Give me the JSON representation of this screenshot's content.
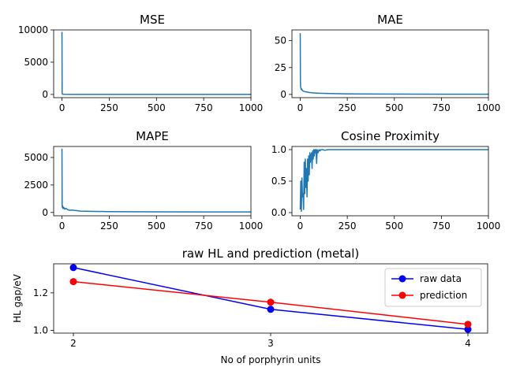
{
  "chart_data": [
    {
      "type": "line",
      "title": "MSE",
      "xlabel": "",
      "ylabel": "",
      "xlim": [
        -44,
        1000
      ],
      "ylim": [
        -500,
        10000
      ],
      "xticks": [
        0,
        250,
        500,
        750,
        1000
      ],
      "xtick_labels": [
        "0",
        "250",
        "500",
        "750",
        "1000"
      ],
      "yticks": [
        0,
        5000,
        10000
      ],
      "ytick_labels": [
        "0",
        "5000",
        "10000"
      ],
      "color": "#1f77b4",
      "series": [
        {
          "x": [
            0,
            1,
            3,
            10,
            50,
            100,
            250,
            500,
            750,
            1000
          ],
          "values": [
            9700,
            100,
            30,
            15,
            5,
            3,
            2,
            1,
            1,
            1
          ]
        }
      ]
    },
    {
      "type": "line",
      "title": "MAE",
      "xlabel": "",
      "ylabel": "",
      "xlim": [
        -44,
        1000
      ],
      "ylim": [
        -3,
        60
      ],
      "xticks": [
        0,
        250,
        500,
        750,
        1000
      ],
      "xtick_labels": [
        "0",
        "250",
        "500",
        "750",
        "1000"
      ],
      "yticks": [
        0,
        25,
        50
      ],
      "ytick_labels": [
        "0",
        "25",
        "50"
      ],
      "color": "#1f77b4",
      "series": [
        {
          "x": [
            0,
            1,
            2,
            4,
            6,
            8,
            12,
            18,
            25,
            35,
            50,
            70,
            100,
            150,
            250,
            500,
            750,
            1000
          ],
          "values": [
            57,
            12,
            7,
            5.5,
            4.5,
            5,
            3.5,
            3,
            2.6,
            2.2,
            1.8,
            1.4,
            1.1,
            0.8,
            0.5,
            0.3,
            0.2,
            0.2
          ]
        }
      ]
    },
    {
      "type": "line",
      "title": "MAPE",
      "xlabel": "",
      "ylabel": "",
      "xlim": [
        -44,
        1000
      ],
      "ylim": [
        -300,
        6000
      ],
      "xticks": [
        0,
        250,
        500,
        750,
        1000
      ],
      "xtick_labels": [
        "0",
        "250",
        "500",
        "750",
        "1000"
      ],
      "yticks": [
        0,
        2500,
        5000
      ],
      "ytick_labels": [
        "0",
        "2500",
        "5000"
      ],
      "color": "#1f77b4",
      "series": [
        {
          "x": [
            0,
            1,
            2,
            4,
            6,
            10,
            15,
            20,
            30,
            40,
            50,
            70,
            100,
            150,
            250,
            500,
            750,
            1000
          ],
          "values": [
            5800,
            700,
            450,
            600,
            350,
            450,
            300,
            380,
            250,
            200,
            220,
            180,
            120,
            100,
            80,
            60,
            50,
            50
          ]
        }
      ]
    },
    {
      "type": "line",
      "title": "Cosine Proximity",
      "xlabel": "",
      "ylabel": "",
      "xlim": [
        -44,
        1000
      ],
      "ylim": [
        -0.05,
        1.05
      ],
      "xticks": [
        0,
        250,
        500,
        750,
        1000
      ],
      "xtick_labels": [
        "0",
        "250",
        "500",
        "750",
        "1000"
      ],
      "yticks": [
        0,
        0.5,
        1
      ],
      "ytick_labels": [
        "0.0",
        "0.5",
        "1.0"
      ],
      "color": "#1f77b4",
      "series": [
        {
          "x": [
            0,
            3,
            6,
            9,
            12,
            15,
            18,
            21,
            24,
            27,
            30,
            33,
            36,
            39,
            42,
            45,
            48,
            51,
            54,
            57,
            60,
            63,
            66,
            69,
            72,
            75,
            78,
            81,
            84,
            87,
            90,
            95,
            100,
            105,
            110,
            120,
            130,
            150,
            200,
            300,
            500,
            750,
            1000
          ],
          "values": [
            0.05,
            0.5,
            0.02,
            0.55,
            0.25,
            0.3,
            0.05,
            0.8,
            0.3,
            0.85,
            0.4,
            0.7,
            0.25,
            0.85,
            0.5,
            0.9,
            0.6,
            0.95,
            0.8,
            0.9,
            0.95,
            0.7,
            0.98,
            0.85,
            1.0,
            0.9,
            1.0,
            0.95,
            1.0,
            0.78,
            1.0,
            0.95,
            1.0,
            0.98,
            1.0,
            1.0,
            0.99,
            1.0,
            1.0,
            1.0,
            1.0,
            1.0,
            1.0
          ]
        }
      ]
    },
    {
      "type": "line",
      "title": "raw HL and prediction (metal)",
      "xlabel": "No of porphyrin units",
      "ylabel": "HL gap/eV",
      "xlim": [
        1.9,
        4.1
      ],
      "ylim": [
        0.985,
        1.355
      ],
      "xticks": [
        2,
        3,
        4
      ],
      "xtick_labels": [
        "2",
        "3",
        "4"
      ],
      "yticks": [
        1.0,
        1.2
      ],
      "ytick_labels": [
        "1.0",
        "1.2"
      ],
      "legend_position": "top-right",
      "categories": [
        2,
        3,
        4
      ],
      "series": [
        {
          "name": "raw data",
          "color": "#0000ff",
          "x": [
            2,
            3,
            4
          ],
          "values": [
            1.335,
            1.112,
            1.005
          ]
        },
        {
          "name": "prediction",
          "color": "#ff0000",
          "x": [
            2,
            3,
            4
          ],
          "values": [
            1.26,
            1.15,
            1.032
          ]
        }
      ]
    }
  ]
}
